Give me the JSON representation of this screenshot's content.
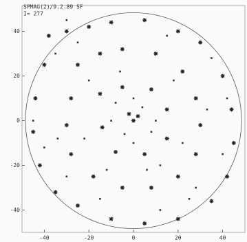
{
  "chart_data": {
    "type": "scatter",
    "annotations": [
      "SPMAG(2)/9.2.89 SF",
      "I= 277"
    ],
    "xlim": [
      -50,
      50
    ],
    "ylim": [
      -50,
      50
    ],
    "xticks": [
      -40,
      -20,
      0,
      20,
      40
    ],
    "yticks": [
      -40,
      -20,
      0,
      20,
      40
    ],
    "series": [
      {
        "color": "#222222",
        "marker": "star",
        "x": [
          -38,
          -30,
          -20,
          -10,
          5,
          20,
          30,
          -40,
          -44,
          -45,
          -42,
          -35,
          -25,
          -10,
          5,
          20,
          35,
          42,
          45,
          44,
          40,
          -25,
          -15,
          -5,
          10,
          22,
          28,
          30,
          28,
          20,
          8,
          -5,
          -18,
          -28,
          -30,
          -28,
          -15,
          -5,
          8,
          15,
          15,
          5,
          -8,
          -14,
          0,
          2,
          -2
        ],
        "y": [
          38,
          40,
          42,
          44,
          45,
          40,
          35,
          25,
          10,
          -5,
          -20,
          -32,
          -38,
          -44,
          -46,
          -44,
          -36,
          -25,
          -10,
          5,
          20,
          25,
          30,
          32,
          30,
          22,
          10,
          -2,
          -15,
          -25,
          -30,
          -30,
          -25,
          -15,
          -2,
          10,
          12,
          15,
          14,
          5,
          -8,
          -15,
          -14,
          -3,
          0,
          2,
          3
        ]
      },
      {
        "color": "#333333",
        "marker": "dot",
        "x": [
          -35,
          -25,
          15,
          35,
          -45,
          -40,
          -30,
          -15,
          12,
          28,
          40,
          42,
          -20,
          18,
          22,
          12,
          -12,
          -22,
          -8,
          8,
          4,
          -4,
          0,
          10,
          0,
          -10,
          -6,
          6,
          25,
          -34,
          33,
          -30
        ],
        "y": [
          30,
          35,
          38,
          28,
          0,
          -12,
          -25,
          -35,
          -40,
          -30,
          -15,
          10,
          18,
          18,
          -10,
          -20,
          -22,
          -8,
          8,
          -5,
          6,
          -6,
          10,
          0,
          -10,
          0,
          22,
          -22,
          -35,
          -8,
          5,
          45
        ]
      }
    ]
  }
}
